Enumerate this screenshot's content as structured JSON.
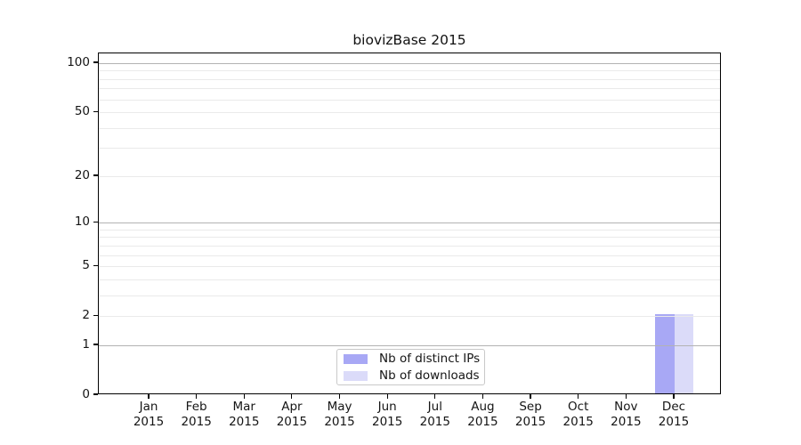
{
  "chart_data": {
    "type": "bar",
    "title": "biovizBase 2015",
    "categories": [
      "Jan",
      "Feb",
      "Mar",
      "Apr",
      "May",
      "Jun",
      "Jul",
      "Aug",
      "Sep",
      "Oct",
      "Nov",
      "Dec"
    ],
    "category_year": "2015",
    "series": [
      {
        "name": "Nb of distinct IPs",
        "color": "#a8a8f5",
        "values": [
          0,
          0,
          0,
          0,
          0,
          0,
          0,
          0,
          0,
          0,
          0,
          2
        ]
      },
      {
        "name": "Nb of downloads",
        "color": "#dbdbf9",
        "values": [
          0,
          0,
          0,
          0,
          0,
          0,
          0,
          0,
          0,
          0,
          0,
          2
        ]
      }
    ],
    "y_axis": {
      "scale": "log1p",
      "tick_values": [
        0,
        1,
        2,
        5,
        10,
        20,
        50,
        100
      ],
      "major_gridlines": [
        1,
        10,
        100
      ],
      "minor_gridlines": [
        2,
        3,
        4,
        5,
        6,
        7,
        8,
        9,
        20,
        30,
        40,
        50,
        60,
        70,
        80,
        90
      ]
    },
    "legend_position": "lower center",
    "colors": {
      "major_grid": "#b3b3b3",
      "minor_grid": "#eaeaea",
      "axis": "#000000",
      "legend_border": "#c9c9c9",
      "text": "#151515",
      "background": "#ffffff"
    }
  }
}
